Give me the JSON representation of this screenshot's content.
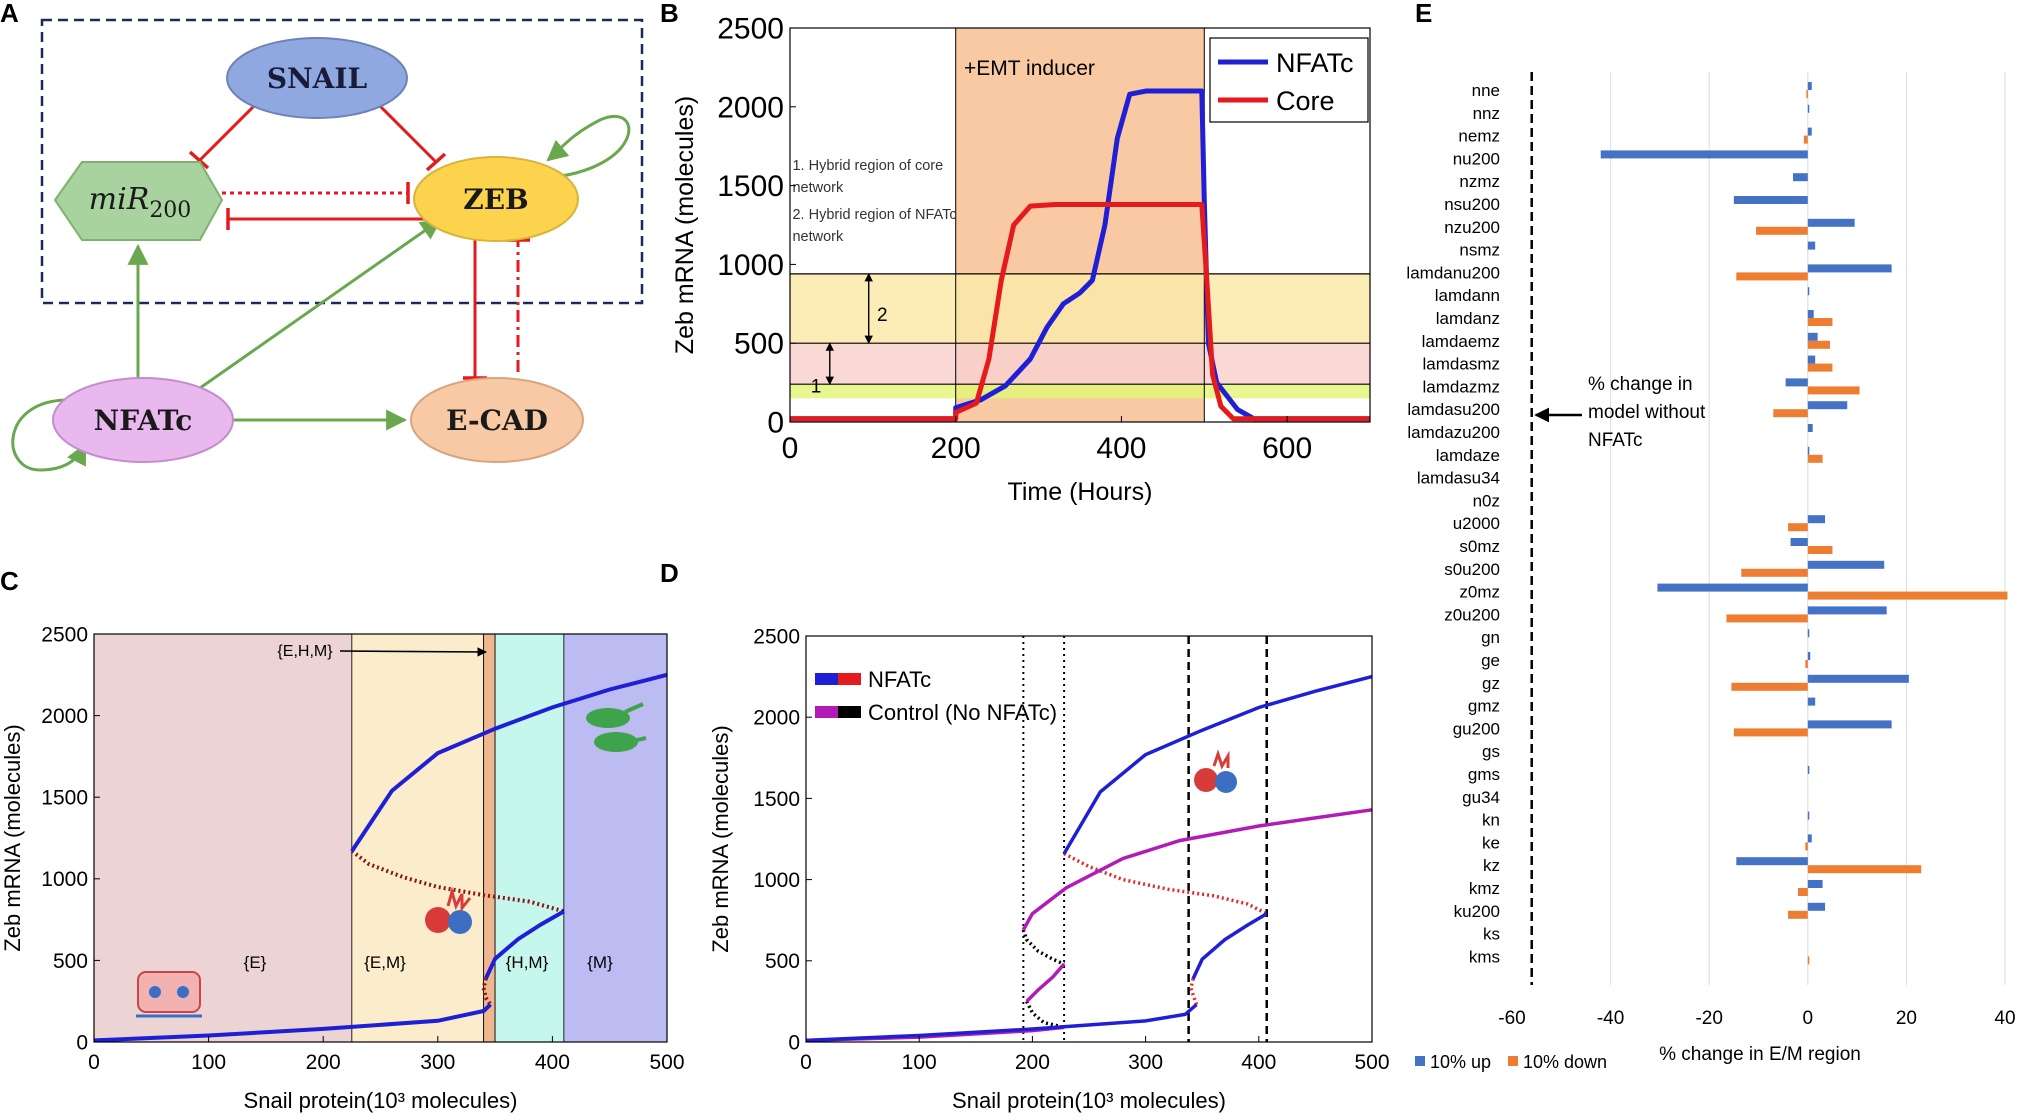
{
  "panels": {
    "A": "A",
    "B": "B",
    "C": "C",
    "D": "D",
    "E": "E"
  },
  "colors": {
    "blue": "#1f1fd6",
    "red": "#e41a1c",
    "magenta": "#b21bb5",
    "dotted_red": "#e32626",
    "green": "#6aa84f",
    "bar_up": "#4472c4",
    "bar_down": "#ed7d31"
  },
  "panel_a": {
    "nodes": {
      "snail": "SNAIL",
      "mir_italic": "miR",
      "mir_sub": "200",
      "zeb": "ZEB",
      "nfatc": "NFATc",
      "ecad": "E-CAD"
    }
  },
  "chart_data": [
    {
      "id": "B",
      "type": "line",
      "xlabel": "Time (Hours)",
      "ylabel": "Zeb mRNA (molecules)",
      "xlim": [
        0,
        700
      ],
      "ylim": [
        0,
        2500
      ],
      "xticks": [
        0,
        200,
        400,
        600
      ],
      "yticks": [
        0,
        500,
        1000,
        1500,
        2000,
        2500
      ],
      "inducer_span": [
        200,
        500
      ],
      "inducer_label": "+EMT inducer",
      "bands": [
        {
          "name": "hybrid-nfatc",
          "range": [
            500,
            940
          ],
          "color": "#fbe9a8"
        },
        {
          "name": "hybrid-core",
          "range": [
            240,
            500
          ],
          "color": "#f9d1cf"
        },
        {
          "name": "green-band",
          "range": [
            150,
            240
          ],
          "color": "#e3f57a"
        }
      ],
      "arrow_labels": [
        "1",
        "2"
      ],
      "note_lines": [
        "1. Hybrid region of core",
        "network",
        "2. Hybrid region of NFATc",
        "network"
      ],
      "series": [
        {
          "name": "NFATc",
          "points": [
            [
              0,
              20
            ],
            [
              200,
              20
            ],
            [
              200,
              90
            ],
            [
              230,
              140
            ],
            [
              260,
              230
            ],
            [
              290,
              400
            ],
            [
              310,
              600
            ],
            [
              330,
              750
            ],
            [
              350,
              820
            ],
            [
              365,
              900
            ],
            [
              380,
              1250
            ],
            [
              395,
              1800
            ],
            [
              410,
              2080
            ],
            [
              430,
              2100
            ],
            [
              497,
              2100
            ],
            [
              500,
              1400
            ],
            [
              505,
              500
            ],
            [
              515,
              250
            ],
            [
              540,
              80
            ],
            [
              560,
              20
            ],
            [
              700,
              20
            ]
          ]
        },
        {
          "name": "Core",
          "points": [
            [
              0,
              20
            ],
            [
              200,
              20
            ],
            [
              200,
              60
            ],
            [
              225,
              120
            ],
            [
              240,
              400
            ],
            [
              255,
              900
            ],
            [
              270,
              1250
            ],
            [
              290,
              1370
            ],
            [
              320,
              1380
            ],
            [
              497,
              1380
            ],
            [
              503,
              900
            ],
            [
              510,
              300
            ],
            [
              520,
              100
            ],
            [
              535,
              20
            ],
            [
              700,
              20
            ]
          ]
        }
      ]
    },
    {
      "id": "C",
      "type": "line",
      "xlabel": "Snail protein(10³ molecules)",
      "ylabel": "Zeb mRNA (molecules)",
      "xlim": [
        0,
        500
      ],
      "ylim": [
        0,
        2500
      ],
      "xticks": [
        0,
        100,
        200,
        300,
        400,
        500
      ],
      "yticks": [
        0,
        500,
        1000,
        1500,
        2000,
        2500
      ],
      "regions": [
        {
          "label": "{E}",
          "range": [
            0,
            225
          ],
          "color": "#ecd4d4"
        },
        {
          "label": "{E,M}",
          "range": [
            225,
            340
          ],
          "color": "#fbeccc"
        },
        {
          "label": "",
          "range": [
            340,
            350
          ],
          "color": "#f0b690"
        },
        {
          "label": "{H,M}",
          "range": [
            350,
            410
          ],
          "color": "#c6f7ec"
        },
        {
          "label": "{M}",
          "range": [
            410,
            500
          ],
          "color": "#bcbcf3"
        }
      ],
      "annotation": "{E,H,M}",
      "stable": [
        [
          [
            0,
            10
          ],
          [
            100,
            40
          ],
          [
            200,
            80
          ],
          [
            300,
            130
          ],
          [
            340,
            190
          ],
          [
            346,
            230
          ]
        ],
        [
          [
            225,
            1170
          ],
          [
            260,
            1540
          ],
          [
            300,
            1770
          ],
          [
            350,
            1920
          ],
          [
            400,
            2050
          ],
          [
            450,
            2160
          ],
          [
            500,
            2250
          ]
        ],
        [
          [
            342,
            390
          ],
          [
            350,
            510
          ],
          [
            370,
            630
          ],
          [
            390,
            720
          ],
          [
            410,
            800
          ]
        ]
      ],
      "unstable": [
        [
          [
            225,
            1170
          ],
          [
            240,
            1090
          ],
          [
            270,
            1010
          ],
          [
            300,
            950
          ],
          [
            340,
            900
          ],
          [
            380,
            860
          ],
          [
            410,
            800
          ]
        ],
        [
          [
            342,
            390
          ],
          [
            340,
            330
          ],
          [
            342,
            270
          ],
          [
            346,
            230
          ]
        ]
      ]
    },
    {
      "id": "D",
      "type": "line",
      "xlabel": "Snail protein(10³ molecules)",
      "ylabel": "Zeb mRNA (molecules)",
      "xlim": [
        0,
        500
      ],
      "ylim": [
        0,
        2500
      ],
      "xticks": [
        0,
        100,
        200,
        300,
        400,
        500
      ],
      "yticks": [
        0,
        500,
        1000,
        1500,
        2000,
        2500
      ],
      "vlines_dotted": [
        192,
        228
      ],
      "vlines_dashed": [
        338,
        407
      ],
      "legend": [
        "NFATc",
        "Control (No NFATc)"
      ],
      "nfatc_stable": [
        [
          [
            0,
            10
          ],
          [
            100,
            40
          ],
          [
            200,
            80
          ],
          [
            300,
            130
          ],
          [
            335,
            170
          ],
          [
            345,
            230
          ]
        ],
        [
          [
            228,
            1160
          ],
          [
            260,
            1540
          ],
          [
            300,
            1770
          ],
          [
            350,
            1920
          ],
          [
            400,
            2060
          ],
          [
            450,
            2160
          ],
          [
            500,
            2250
          ]
        ],
        [
          [
            342,
            390
          ],
          [
            350,
            510
          ],
          [
            370,
            630
          ],
          [
            390,
            720
          ],
          [
            407,
            790
          ]
        ]
      ],
      "nfatc_unstable": [
        [
          [
            228,
            1160
          ],
          [
            250,
            1080
          ],
          [
            280,
            1000
          ],
          [
            320,
            940
          ],
          [
            360,
            900
          ],
          [
            390,
            850
          ],
          [
            407,
            790
          ]
        ],
        [
          [
            342,
            390
          ],
          [
            340,
            330
          ],
          [
            343,
            270
          ],
          [
            345,
            230
          ]
        ]
      ],
      "control_stable": [
        [
          [
            0,
            10
          ],
          [
            100,
            30
          ],
          [
            150,
            50
          ],
          [
            200,
            70
          ],
          [
            228,
            90
          ]
        ],
        [
          [
            192,
            690
          ],
          [
            200,
            790
          ],
          [
            230,
            950
          ],
          [
            280,
            1130
          ],
          [
            330,
            1240
          ],
          [
            400,
            1330
          ],
          [
            450,
            1380
          ],
          [
            500,
            1430
          ]
        ],
        [
          [
            195,
            250
          ],
          [
            205,
            320
          ],
          [
            218,
            400
          ],
          [
            228,
            480
          ]
        ]
      ],
      "control_unstable": [
        [
          [
            192,
            690
          ],
          [
            195,
            630
          ],
          [
            205,
            560
          ],
          [
            218,
            510
          ],
          [
            228,
            480
          ]
        ],
        [
          [
            195,
            250
          ],
          [
            200,
            180
          ],
          [
            210,
            120
          ],
          [
            228,
            90
          ]
        ]
      ]
    },
    {
      "id": "E",
      "type": "bar",
      "xlabel": "% change in E/M region",
      "xlim": [
        -60,
        40
      ],
      "xticks": [
        -60,
        -40,
        -20,
        0,
        20,
        40
      ],
      "reference_line": -56,
      "reference_label": [
        "% change in",
        "model without",
        "NFATc"
      ],
      "legend": [
        "10% up",
        "10% down"
      ],
      "categories": [
        "nne",
        "nnz",
        "nemz",
        "nu200",
        "nzmz",
        "nsu200",
        "nzu200",
        "nsmz",
        "lamdanu200",
        "lamdann",
        "lamdanz",
        "lamdaemz",
        "lamdasmz",
        "lamdazmz",
        "lamdasu200",
        "lamdazu200",
        "lamdaze",
        "lamdasu34",
        "n0z",
        "u2000",
        "s0mz",
        "s0u200",
        "z0mz",
        "z0u200",
        "gn",
        "ge",
        "gz",
        "gmz",
        "gu200",
        "gs",
        "gms",
        "gu34",
        "kn",
        "ke",
        "kz",
        "kmz",
        "ku200",
        "ks",
        "kms"
      ],
      "series": [
        {
          "name": "10% up",
          "values": [
            0.8,
            0.3,
            0.8,
            -42,
            -3,
            -15,
            9.5,
            1.5,
            17,
            0.2,
            1.2,
            2,
            1.5,
            -4.5,
            8,
            1,
            0.2,
            0,
            0,
            3.5,
            -3.5,
            15.5,
            -30.5,
            16,
            0.2,
            0.5,
            20.5,
            1.5,
            17,
            0,
            0.2,
            0,
            0.3,
            0.8,
            -14.5,
            3,
            3.5,
            0,
            0
          ]
        },
        {
          "name": "10% down",
          "values": [
            -0.3,
            0,
            -0.8,
            0,
            0,
            0,
            -10.5,
            0,
            -14.5,
            0,
            5,
            4.5,
            5,
            10.5,
            -7,
            0,
            3,
            0,
            0,
            -4,
            5,
            -13.5,
            40.5,
            -16.5,
            0,
            -0.5,
            -15.5,
            0,
            -15,
            0,
            0,
            0,
            0,
            -0.5,
            23,
            -2,
            -4,
            0,
            0.3
          ]
        }
      ]
    }
  ]
}
